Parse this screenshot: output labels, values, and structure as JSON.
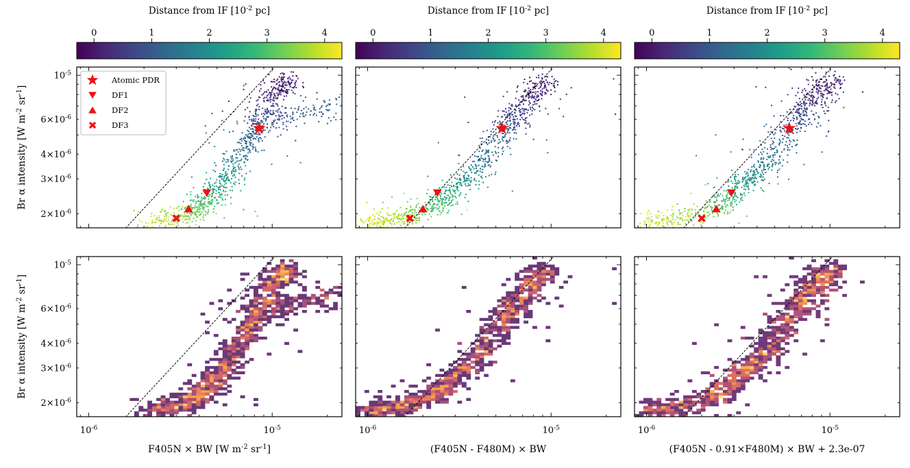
{
  "figure": {
    "colorbar_label": "Distance from IF [10^{-2} pc]",
    "colorbar_ticks": [
      "0",
      "1",
      "2",
      "3",
      "4"
    ],
    "colorbar_range": [
      -0.3,
      4.3
    ],
    "xlabels": [
      "F405N × BW [W m^{-2} sr^{-1}]",
      "(F405N - F480M) × BW",
      "(F405N - 0.91×F480M) × BW + 2.3e-07"
    ],
    "ylabel": "Br α intensity [W m^{-2} sr^{-1}]",
    "x_tick_labels": [
      "10^{-6}",
      "10^{-5}"
    ],
    "y_tick_labels": [
      "2×10^{-6}",
      "3×10^{-6}",
      "4×10^{-6}",
      "6×10^{-6}",
      "10^{-5}"
    ],
    "legend": [
      {
        "label": "Atomic PDR",
        "marker": "star"
      },
      {
        "label": "DF1",
        "marker": "triangle-down"
      },
      {
        "label": "DF2",
        "marker": "triangle-up"
      },
      {
        "label": "DF3",
        "marker": "x"
      }
    ]
  },
  "chart_data": [
    {
      "type": "scatter",
      "panel": "top-left",
      "xlabel": "",
      "ylabel": "Br α intensity [W m^{-2} sr^{-1}]",
      "xscale": "log",
      "yscale": "log",
      "xlim": [
        8.6e-07,
        2.4e-05
      ],
      "ylim": [
        1.7e-06,
        1.1e-05
      ],
      "ridge": [
        {
          "x": 2.2e-06,
          "y": 1.82e-06,
          "d": 4.0
        },
        {
          "x": 3.2e-06,
          "y": 1.95e-06,
          "d": 3.6
        },
        {
          "x": 4e-06,
          "y": 2.15e-06,
          "d": 3.2
        },
        {
          "x": 4.8e-06,
          "y": 2.55e-06,
          "d": 2.6
        },
        {
          "x": 5.8e-06,
          "y": 3.2e-06,
          "d": 2.0
        },
        {
          "x": 7e-06,
          "y": 4.5e-06,
          "d": 1.3
        },
        {
          "x": 8.5e-06,
          "y": 5.8e-06,
          "d": 0.8
        },
        {
          "x": 1e-05,
          "y": 7.8e-06,
          "d": 0.3
        },
        {
          "x": 1.2e-05,
          "y": 9.8e-06,
          "d": 0.0
        }
      ],
      "reference_line": {
        "slope": 1,
        "x0": 1.5e-06,
        "y0": 1.6e-06
      },
      "markers": [
        {
          "label": "Atomic PDR",
          "x": 8.5e-06,
          "y": 5.4e-06
        },
        {
          "label": "DF1",
          "x": 4.4e-06,
          "y": 2.55e-06
        },
        {
          "label": "DF2",
          "x": 3.5e-06,
          "y": 2.12e-06
        },
        {
          "label": "DF3",
          "x": 3e-06,
          "y": 1.9e-06
        }
      ]
    },
    {
      "type": "scatter",
      "panel": "top-middle",
      "xlabel": "",
      "ylabel": "",
      "xscale": "log",
      "yscale": "log",
      "xlim": [
        8.6e-07,
        2.4e-05
      ],
      "ylim": [
        1.7e-06,
        1.1e-05
      ],
      "ridge": [
        {
          "x": 1e-06,
          "y": 1.82e-06,
          "d": 4.1
        },
        {
          "x": 1.5e-06,
          "y": 1.9e-06,
          "d": 3.7
        },
        {
          "x": 2.3e-06,
          "y": 2.2e-06,
          "d": 3.0
        },
        {
          "x": 3e-06,
          "y": 2.7e-06,
          "d": 2.3
        },
        {
          "x": 4e-06,
          "y": 3.5e-06,
          "d": 1.6
        },
        {
          "x": 5.5e-06,
          "y": 5.2e-06,
          "d": 1.0
        },
        {
          "x": 7e-06,
          "y": 7e-06,
          "d": 0.5
        },
        {
          "x": 9e-06,
          "y": 9.5e-06,
          "d": 0.0
        }
      ],
      "reference_line": {
        "slope": 1,
        "x0": 1.5e-06,
        "y0": 1.6e-06
      },
      "markers": [
        {
          "label": "Atomic PDR",
          "x": 5.4e-06,
          "y": 5.4e-06
        },
        {
          "label": "DF1",
          "x": 2.4e-06,
          "y": 2.55e-06
        },
        {
          "label": "DF2",
          "x": 2e-06,
          "y": 2.12e-06
        },
        {
          "label": "DF3",
          "x": 1.7e-06,
          "y": 1.9e-06
        }
      ]
    },
    {
      "type": "scatter",
      "panel": "top-right",
      "xlabel": "",
      "ylabel": "",
      "xscale": "log",
      "yscale": "log",
      "xlim": [
        8.6e-07,
        2.4e-05
      ],
      "ylim": [
        1.7e-06,
        1.1e-05
      ],
      "ridge": [
        {
          "x": 1e-06,
          "y": 1.82e-06,
          "d": 4.1
        },
        {
          "x": 1.6e-06,
          "y": 1.9e-06,
          "d": 3.7
        },
        {
          "x": 2.6e-06,
          "y": 2.25e-06,
          "d": 3.0
        },
        {
          "x": 3.3e-06,
          "y": 2.8e-06,
          "d": 2.3
        },
        {
          "x": 4.4e-06,
          "y": 3.6e-06,
          "d": 1.6
        },
        {
          "x": 6e-06,
          "y": 5.3e-06,
          "d": 1.0
        },
        {
          "x": 7.8e-06,
          "y": 7.2e-06,
          "d": 0.5
        },
        {
          "x": 1e-05,
          "y": 9.7e-06,
          "d": 0.0
        }
      ],
      "reference_line": {
        "slope": 1,
        "x0": 1.5e-06,
        "y0": 1.6e-06
      },
      "markers": [
        {
          "label": "Atomic PDR",
          "x": 6e-06,
          "y": 5.4e-06
        },
        {
          "label": "DF1",
          "x": 2.9e-06,
          "y": 2.55e-06
        },
        {
          "label": "DF2",
          "x": 2.4e-06,
          "y": 2.12e-06
        },
        {
          "label": "DF3",
          "x": 2e-06,
          "y": 1.9e-06
        }
      ]
    },
    {
      "type": "heatmap",
      "panel": "bottom-left",
      "xlabel": "F405N × BW [W m^{-2} sr^{-1}]",
      "ylabel": "Br α intensity [W m^{-2} sr^{-1}]",
      "xscale": "log",
      "yscale": "log",
      "xlim": [
        8.6e-07,
        2.4e-05
      ],
      "ylim": [
        1.7e-06,
        1.1e-05
      ],
      "note": "2D histogram (density) of the same points as the scatter panel above",
      "reference_line": {
        "slope": 1,
        "x0": 1.5e-06,
        "y0": 1.6e-06
      }
    },
    {
      "type": "heatmap",
      "panel": "bottom-middle",
      "xlabel": "(F405N - F480M) × BW",
      "ylabel": "",
      "xscale": "log",
      "yscale": "log",
      "xlim": [
        8.6e-07,
        2.4e-05
      ],
      "ylim": [
        1.7e-06,
        1.1e-05
      ],
      "note": "2D histogram (density) of the same points as the scatter panel above",
      "reference_line": {
        "slope": 1,
        "x0": 1.5e-06,
        "y0": 1.6e-06
      }
    },
    {
      "type": "heatmap",
      "panel": "bottom-right",
      "xlabel": "(F405N - 0.91×F480M) × BW + 2.3e-07",
      "ylabel": "",
      "xscale": "log",
      "yscale": "log",
      "xlim": [
        8.6e-07,
        2.4e-05
      ],
      "ylim": [
        1.7e-06,
        1.1e-05
      ],
      "note": "2D histogram (density) of the same points as the scatter panel above",
      "reference_line": {
        "slope": 1,
        "x0": 1.5e-06,
        "y0": 1.6e-06
      }
    }
  ]
}
